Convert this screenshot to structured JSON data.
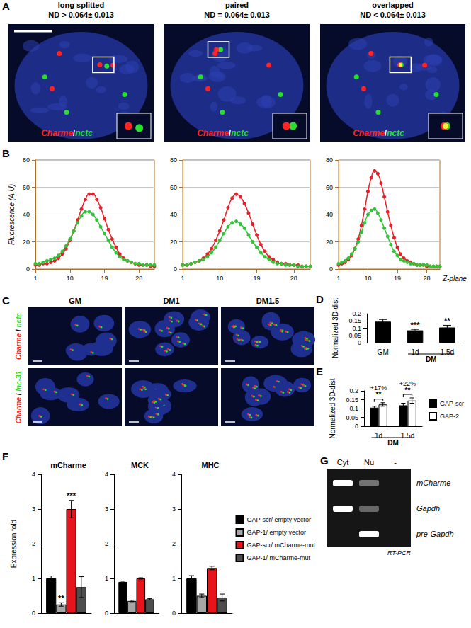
{
  "panel_letters": [
    "A",
    "B",
    "C",
    "D",
    "E",
    "F",
    "G"
  ],
  "panel_a": {
    "label": {
      "target": "Charme",
      "separator": "/",
      "partner": "nctc"
    },
    "images": [
      {
        "title": "long splitted",
        "nd": "ND > 0.064± 0.013"
      },
      {
        "title": "paired",
        "nd": "ND = 0.064± 0.013"
      },
      {
        "title": "overlapped",
        "nd": "ND < 0.064± 0.013"
      }
    ]
  },
  "panel_c": {
    "columns": [
      "GM",
      "DM1",
      "DM1.5"
    ],
    "rows": [
      {
        "target": "Charme",
        "separator": "/",
        "partner": "nctc"
      },
      {
        "target": "Charme",
        "separator": "/",
        "partner": "lnc-31"
      }
    ]
  },
  "panel_g": {
    "lanes": [
      "Cyt",
      "Nu",
      "-"
    ],
    "rows": [
      {
        "label": "mCharme",
        "bands": [
          1,
          0.4,
          0
        ]
      },
      {
        "label": "Gapdh",
        "bands": [
          1,
          0.35,
          0
        ]
      },
      {
        "label": "pre-Gapdh",
        "bands": [
          0,
          1,
          0
        ]
      }
    ],
    "caption": "RT-PCR"
  },
  "chart_data": [
    {
      "type": "line",
      "y_label": "Fluorescence (A.U)",
      "grid": true,
      "x": [
        1,
        2,
        3,
        4,
        5,
        6,
        7,
        8,
        9,
        10,
        11,
        12,
        13,
        14,
        15,
        16,
        17,
        18,
        19,
        20,
        21,
        22,
        23,
        24,
        25,
        26,
        27,
        28,
        29,
        30,
        31,
        32
      ],
      "xlim": [
        1,
        32
      ],
      "xticks": [
        1,
        10,
        19,
        28
      ],
      "ylim": [
        0,
        80
      ],
      "yticks": [
        0,
        20,
        40,
        60,
        80
      ],
      "series": [
        {
          "color": "#e8202a",
          "marker": "circle",
          "values": [
            3,
            3,
            4,
            4,
            5,
            6,
            8,
            11,
            15,
            21,
            28,
            36,
            44,
            51,
            55,
            55,
            51,
            45,
            37,
            29,
            22,
            16,
            11,
            8,
            6,
            5,
            4,
            3,
            3,
            3,
            2,
            2
          ]
        },
        {
          "color": "#33c23a",
          "marker": "circle",
          "values": [
            4,
            4,
            5,
            6,
            7,
            8,
            10,
            13,
            17,
            22,
            28,
            34,
            39,
            42,
            42,
            40,
            36,
            31,
            26,
            21,
            16,
            12,
            9,
            7,
            6,
            5,
            4,
            4,
            3,
            3,
            3,
            3
          ]
        }
      ]
    },
    {
      "type": "line",
      "grid": true,
      "x": [
        1,
        2,
        3,
        4,
        5,
        6,
        7,
        8,
        9,
        10,
        11,
        12,
        13,
        14,
        15,
        16,
        17,
        18,
        19,
        20,
        21,
        22,
        23,
        24,
        25,
        26,
        27,
        28,
        29,
        30,
        31,
        32
      ],
      "xlim": [
        1,
        32
      ],
      "xticks": [
        1,
        10,
        19,
        28
      ],
      "ylim": [
        0,
        80
      ],
      "yticks": [
        0,
        20,
        40,
        60,
        80
      ],
      "series": [
        {
          "color": "#e8202a",
          "marker": "circle",
          "values": [
            3,
            3,
            4,
            5,
            6,
            8,
            11,
            15,
            21,
            28,
            36,
            45,
            52,
            55,
            53,
            48,
            41,
            33,
            25,
            18,
            13,
            9,
            7,
            5,
            4,
            4,
            3,
            3,
            3,
            2,
            2,
            2
          ]
        },
        {
          "color": "#33c23a",
          "marker": "circle",
          "values": [
            3,
            3,
            4,
            5,
            6,
            7,
            9,
            12,
            16,
            21,
            26,
            31,
            34,
            35,
            33,
            30,
            25,
            20,
            16,
            12,
            9,
            7,
            5,
            4,
            4,
            3,
            3,
            3,
            2,
            2,
            2,
            2
          ]
        }
      ]
    },
    {
      "type": "line",
      "x_label": "Z-plane",
      "grid": true,
      "x": [
        1,
        2,
        3,
        4,
        5,
        6,
        7,
        8,
        9,
        10,
        11,
        12,
        13,
        14,
        15,
        16,
        17,
        18,
        19,
        20,
        21,
        22,
        23,
        24,
        25,
        26,
        27,
        28,
        29,
        30,
        31,
        32
      ],
      "xlim": [
        1,
        32
      ],
      "xticks": [
        1,
        10,
        19,
        28
      ],
      "ylim": [
        0,
        80
      ],
      "yticks": [
        0,
        20,
        40,
        60,
        80
      ],
      "series": [
        {
          "color": "#e8202a",
          "marker": "circle",
          "values": [
            3,
            4,
            5,
            7,
            10,
            15,
            22,
            32,
            44,
            57,
            67,
            72,
            70,
            63,
            53,
            42,
            32,
            23,
            16,
            11,
            8,
            6,
            5,
            4,
            3,
            3,
            3,
            2,
            2,
            2,
            2,
            2
          ]
        },
        {
          "color": "#33c23a",
          "marker": "circle",
          "values": [
            4,
            5,
            6,
            8,
            11,
            15,
            20,
            27,
            34,
            40,
            43,
            44,
            41,
            36,
            30,
            24,
            18,
            13,
            10,
            7,
            6,
            5,
            4,
            4,
            3,
            3,
            3,
            3,
            2,
            2,
            2,
            2
          ]
        }
      ]
    },
    {
      "type": "bar",
      "y_label": "Normalized 3D-dist",
      "grid": false,
      "categories": [
        "GM",
        "1d",
        "1.5d"
      ],
      "group_label": {
        "text": "DM",
        "categories": [
          "1d",
          "1.5d"
        ]
      },
      "ylim": [
        0,
        0.2
      ],
      "yticks": [
        0,
        0.05,
        0.1,
        0.15,
        0.2
      ],
      "series": [
        {
          "color": "#000000",
          "values": [
            0.145,
            0.085,
            0.105
          ],
          "errors": [
            0.015,
            0.007,
            0.015
          ],
          "significance": [
            null,
            "***",
            "**"
          ]
        }
      ]
    },
    {
      "type": "bar",
      "y_label": "Normalized 3D-dist",
      "grid": false,
      "legend": "right",
      "categories": [
        "1d",
        "1.5d"
      ],
      "group_label": {
        "text": "DM",
        "categories": [
          "1d",
          "1.5d"
        ]
      },
      "ylim": [
        0,
        0.2
      ],
      "yticks": [
        0,
        0.05,
        0.1,
        0.15,
        0.2
      ],
      "series": [
        {
          "name": "GAP-scr",
          "color": "#000000",
          "values": [
            0.105,
            0.118
          ],
          "errors": [
            0.008,
            0.012
          ]
        },
        {
          "name": "GAP-2",
          "color": "#ffffff",
          "values": [
            0.123,
            0.145
          ],
          "errors": [
            0.01,
            0.015
          ]
        }
      ],
      "comparisons": [
        {
          "category": "1d",
          "change": "+17%",
          "significance": "**"
        },
        {
          "category": "1.5d",
          "change": "+22%",
          "significance": "**"
        }
      ]
    },
    {
      "type": "bar",
      "title": "mCharme",
      "y_label": "Expression fold",
      "grid": false,
      "tick_labels": "y",
      "ylim": [
        0,
        4
      ],
      "yticks": [
        0,
        1,
        2,
        3,
        4
      ],
      "series": [
        {
          "name": "GAP-scr/ empty vector",
          "color": "#000000",
          "values": [
            1.0
          ],
          "errors": [
            0.07
          ],
          "significance": [
            null
          ]
        },
        {
          "name": "GAP-1/ empty vector",
          "color": "#a6a6a6",
          "values": [
            0.25
          ],
          "errors": [
            0.05
          ],
          "significance": [
            "**"
          ]
        },
        {
          "name": "GAP-scr/ mCharme-mut",
          "color": "#e8141c",
          "values": [
            3.0
          ],
          "errors": [
            0.25
          ],
          "significance": [
            "***"
          ]
        },
        {
          "name": "GAP-1/ mCharme-mut",
          "color": "#4d4d4d",
          "values": [
            0.75
          ],
          "errors": [
            0.3
          ],
          "significance": [
            null
          ]
        }
      ]
    },
    {
      "type": "bar",
      "title": "MCK",
      "grid": false,
      "tick_labels": "y",
      "ylim": [
        0,
        4
      ],
      "yticks": [
        0,
        1,
        2,
        3,
        4
      ],
      "series": [
        {
          "name": "GAP-scr/ empty vector",
          "color": "#000000",
          "values": [
            0.9
          ],
          "errors": [
            0.02
          ]
        },
        {
          "name": "GAP-1/ empty vector",
          "color": "#a6a6a6",
          "values": [
            0.35
          ],
          "errors": [
            0.02
          ]
        },
        {
          "name": "GAP-scr/ mCharme-mut",
          "color": "#e8141c",
          "values": [
            1.0
          ],
          "errors": [
            0.02
          ]
        },
        {
          "name": "GAP-1/ mCharme-mut",
          "color": "#4d4d4d",
          "values": [
            0.4
          ],
          "errors": [
            0.02
          ]
        }
      ]
    },
    {
      "type": "bar",
      "title": "MHC",
      "grid": false,
      "tick_labels": "y",
      "legend": "right",
      "ylim": [
        0,
        4
      ],
      "yticks": [
        0,
        1,
        2,
        3,
        4
      ],
      "series": [
        {
          "name": "GAP-scr/ empty vector",
          "color": "#000000",
          "values": [
            1.0
          ],
          "errors": [
            0.08
          ]
        },
        {
          "name": "GAP-1/ empty vector",
          "color": "#a6a6a6",
          "values": [
            0.5
          ],
          "errors": [
            0.05
          ]
        },
        {
          "name": "GAP-scr/ mCharme-mut",
          "color": "#e8141c",
          "values": [
            1.3
          ],
          "errors": [
            0.05
          ]
        },
        {
          "name": "GAP-1/ mCharme-mut",
          "color": "#4d4d4d",
          "values": [
            0.45
          ],
          "errors": [
            0.1
          ]
        }
      ]
    }
  ]
}
